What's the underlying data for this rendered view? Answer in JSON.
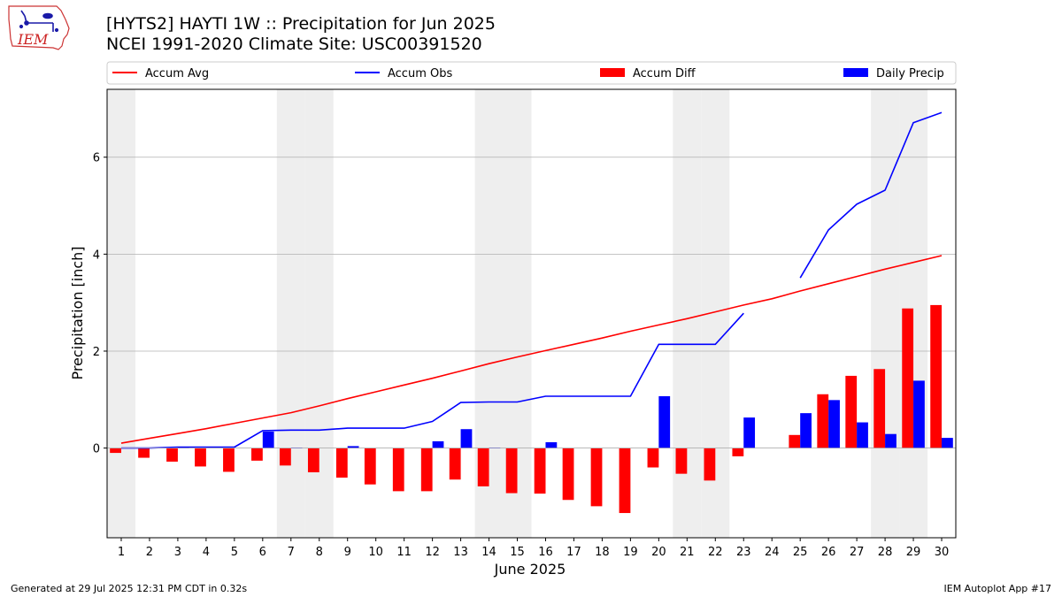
{
  "header": {
    "logo_text": "IEM",
    "title": "[HYTS2] HAYTI 1W :: Precipitation for Jun 2025",
    "subtitle": "NCEI 1991-2020 Climate Site: USC00391520"
  },
  "footer": {
    "generated": "Generated at 29 Jul 2025 12:31 PM CDT in 0.32s",
    "app": "IEM Autoplot App #17"
  },
  "colors": {
    "accum_avg": "#ff0000",
    "accum_obs": "#0000ff",
    "accum_diff": "#ff0000",
    "daily_precip": "#0000ff",
    "weekend_shade": "#eeeeee",
    "grid": "#b0b0b0"
  },
  "chart_data": {
    "type": "bar",
    "xlabel": "June 2025",
    "ylabel": "Precipitation [inch]",
    "ylim": [
      -1.85,
      7.4
    ],
    "yticks": [
      0,
      2,
      4,
      6
    ],
    "grid": "horizontal",
    "legend_placement": "top, above plot",
    "weekend_days": [
      1,
      7,
      8,
      14,
      15,
      21,
      22,
      28,
      29
    ],
    "categories": [
      "1",
      "2",
      "3",
      "4",
      "5",
      "6",
      "7",
      "8",
      "9",
      "10",
      "11",
      "12",
      "13",
      "14",
      "15",
      "16",
      "17",
      "18",
      "19",
      "20",
      "21",
      "22",
      "23",
      "24",
      "25",
      "26",
      "27",
      "28",
      "29",
      "30"
    ],
    "series": [
      {
        "name": "Accum Avg",
        "kind": "line",
        "values": [
          0.1,
          0.2,
          0.3,
          0.4,
          0.51,
          0.62,
          0.73,
          0.87,
          1.02,
          1.16,
          1.3,
          1.44,
          1.59,
          1.74,
          1.88,
          2.01,
          2.14,
          2.27,
          2.41,
          2.54,
          2.67,
          2.81,
          2.95,
          3.08,
          3.24,
          3.39,
          3.54,
          3.69,
          3.83,
          3.97
        ]
      },
      {
        "name": "Accum Obs",
        "kind": "line",
        "values": [
          0.0,
          0.0,
          0.02,
          0.02,
          0.02,
          0.36,
          0.37,
          0.37,
          0.41,
          0.41,
          0.41,
          0.55,
          0.94,
          0.95,
          0.95,
          1.07,
          1.07,
          1.07,
          1.07,
          2.14,
          2.14,
          2.14,
          2.78,
          null,
          3.51,
          4.5,
          5.03,
          5.32,
          6.71,
          6.92
        ]
      },
      {
        "name": "Accum Diff",
        "kind": "bar",
        "values": [
          -0.1,
          -0.2,
          -0.28,
          -0.38,
          -0.49,
          -0.26,
          -0.36,
          -0.5,
          -0.61,
          -0.75,
          -0.89,
          -0.89,
          -0.65,
          -0.79,
          -0.93,
          -0.94,
          -1.07,
          -1.2,
          -1.34,
          -0.4,
          -0.53,
          -0.67,
          -0.17,
          null,
          0.27,
          1.11,
          1.49,
          1.63,
          2.88,
          2.95
        ]
      },
      {
        "name": "Daily Precip",
        "kind": "bar",
        "values": [
          0,
          0,
          0.02,
          0,
          0,
          0.34,
          0.01,
          0,
          0.04,
          0,
          0,
          0.14,
          0.39,
          0.01,
          0,
          0.12,
          0,
          0,
          0,
          1.07,
          0,
          0,
          0.63,
          null,
          0.72,
          0.99,
          0.53,
          0.29,
          1.39,
          0.21
        ]
      }
    ]
  }
}
